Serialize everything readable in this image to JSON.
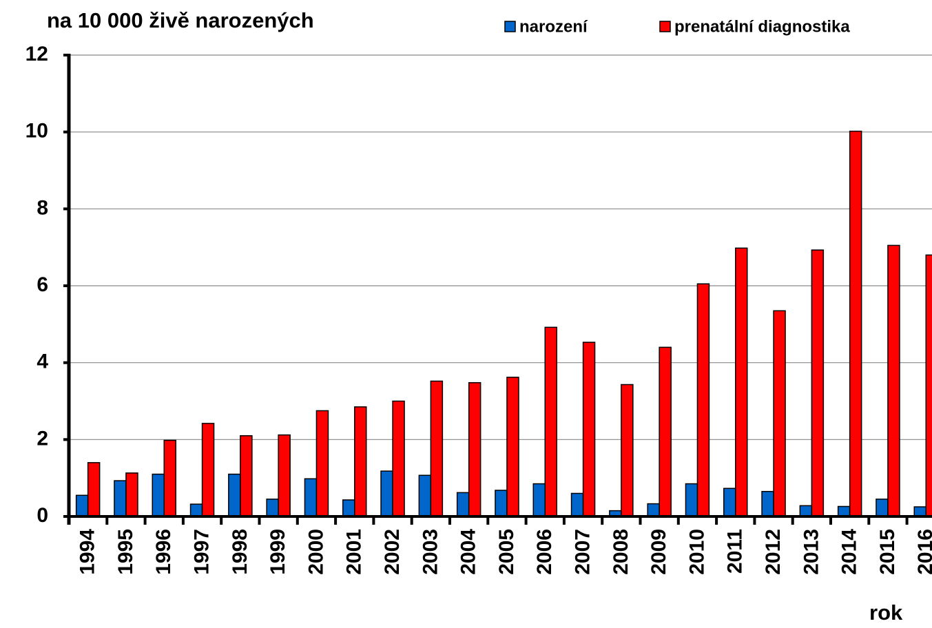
{
  "chart_data": {
    "type": "bar",
    "title": "na 10 000 živě narozených",
    "x_label": "rok",
    "categories": [
      "1994",
      "1995",
      "1996",
      "1997",
      "1998",
      "1999",
      "2000",
      "2001",
      "2002",
      "2003",
      "2004",
      "2005",
      "2006",
      "2007",
      "2008",
      "2009",
      "2010",
      "2011",
      "2012",
      "2013",
      "2014",
      "2015",
      "2016"
    ],
    "series": [
      {
        "name": "narození",
        "color": "#0066cc",
        "values": [
          0.55,
          0.93,
          1.1,
          0.32,
          1.1,
          0.45,
          0.98,
          0.43,
          1.18,
          1.07,
          0.62,
          0.68,
          0.85,
          0.6,
          0.15,
          0.33,
          0.85,
          0.73,
          0.65,
          0.28,
          0.26,
          0.45,
          0.25
        ]
      },
      {
        "name": "prenatální diagnostika",
        "color": "#ff0000",
        "values": [
          1.4,
          1.13,
          1.98,
          2.42,
          2.1,
          2.12,
          2.75,
          2.85,
          3.0,
          3.52,
          3.48,
          3.62,
          4.92,
          4.53,
          3.43,
          4.4,
          6.05,
          6.98,
          5.35,
          6.93,
          10.02,
          7.05,
          6.8
        ]
      }
    ],
    "ylim": [
      0,
      12
    ],
    "yticks": [
      0,
      2,
      4,
      6,
      8,
      10,
      12
    ],
    "grid": true,
    "legend": "top"
  }
}
